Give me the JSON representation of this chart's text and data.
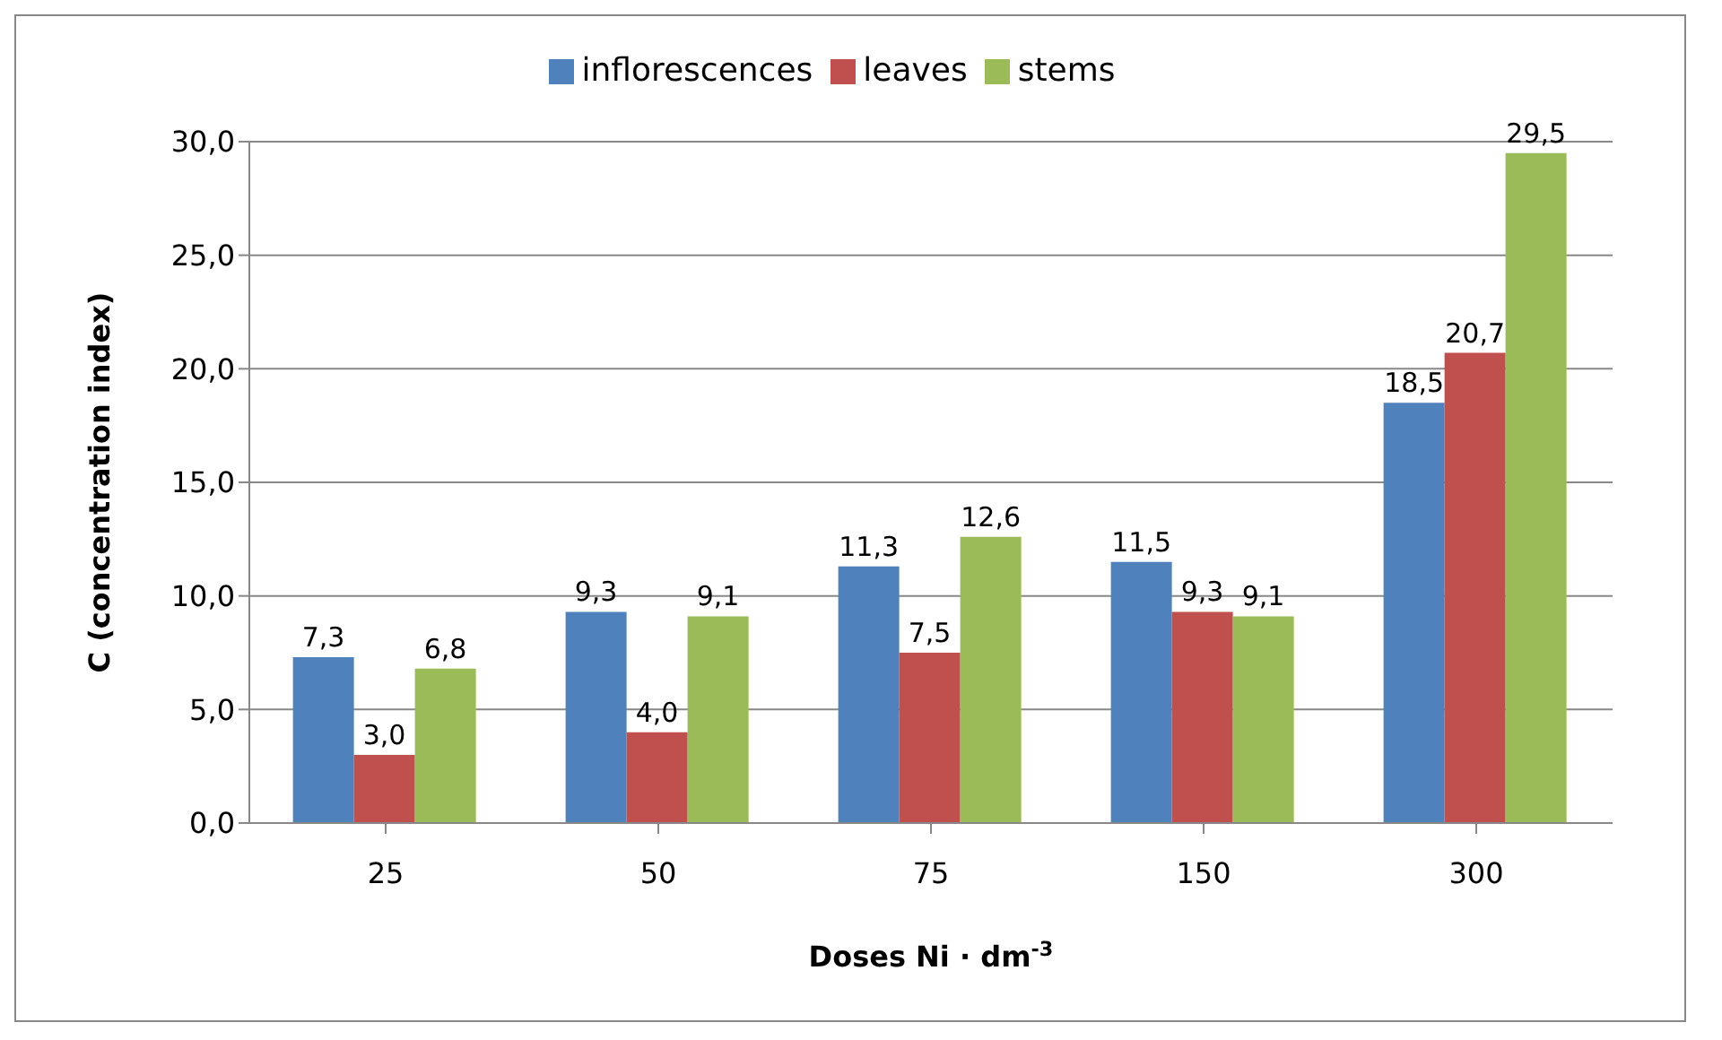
{
  "chart_data": {
    "type": "bar",
    "xlabel": "Doses Ni · dm$^{-3}$",
    "ylabel": "C (concentration index)",
    "categories": [
      "25",
      "50",
      "75",
      "150",
      "300"
    ],
    "series": [
      {
        "name": "inflorescences",
        "color": "#4f81bd",
        "values": [
          7.3,
          9.3,
          11.3,
          11.5,
          18.5
        ],
        "value_labels": [
          "7,3",
          "9,3",
          "11,3",
          "11,5",
          "18,5"
        ]
      },
      {
        "name": "leaves",
        "color": "#c0504d",
        "values": [
          3.0,
          4.0,
          7.5,
          9.3,
          20.7
        ],
        "value_labels": [
          "3,0",
          "4,0",
          "7,5",
          "9,3",
          "20,7"
        ]
      },
      {
        "name": "stems",
        "color": "#9bbb59",
        "values": [
          6.8,
          9.1,
          12.6,
          9.1,
          29.5
        ],
        "value_labels": [
          "6,8",
          "9,1",
          "12,6",
          "9,1",
          "29,5"
        ]
      }
    ],
    "ylim": [
      0,
      30
    ],
    "yticks": [
      {
        "value": 0,
        "label": "0,0"
      },
      {
        "value": 5,
        "label": "5,0"
      },
      {
        "value": 10,
        "label": "10,0"
      },
      {
        "value": 15,
        "label": "15,0"
      },
      {
        "value": 20,
        "label": "20,0"
      },
      {
        "value": 25,
        "label": "25,0"
      },
      {
        "value": 30,
        "label": "30,0"
      }
    ],
    "grid": "y",
    "legend": "top"
  }
}
